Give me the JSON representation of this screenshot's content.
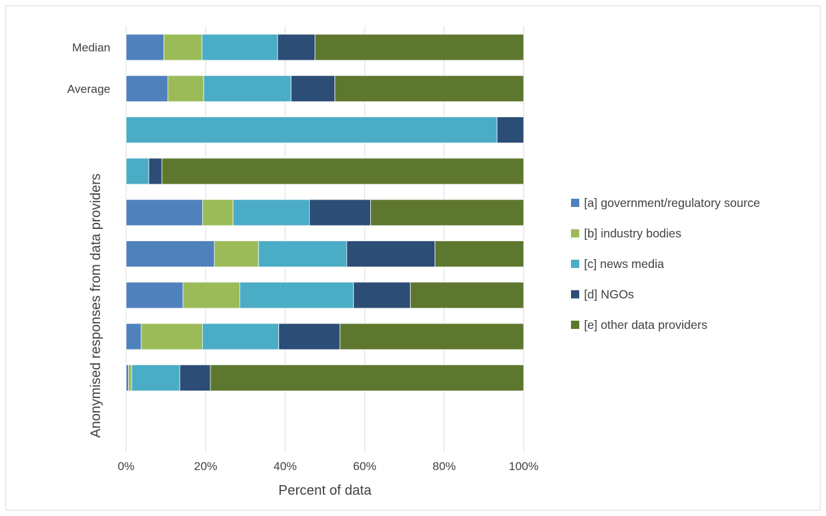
{
  "chart_data": {
    "type": "bar",
    "orientation": "horizontal",
    "stacked": true,
    "xlabel": "Percent of data",
    "ylabel": "Anonymised responses from data providers",
    "xlim": [
      0,
      100
    ],
    "x_ticks": [
      "0%",
      "20%",
      "40%",
      "60%",
      "80%",
      "100%"
    ],
    "grid": true,
    "legend_position": "right",
    "categories": [
      "Median",
      "Average",
      "",
      "",
      "",
      "",
      "",
      "",
      ""
    ],
    "series": [
      {
        "name": "[a] government/regulatory source",
        "color": "#4f81bd",
        "values": [
          9.5,
          10.5,
          0,
          0,
          19.2,
          22.2,
          14.3,
          3.8,
          0.6
        ]
      },
      {
        "name": "[b] industry bodies",
        "color": "#9bbb59",
        "values": [
          9.6,
          9.0,
          0,
          0,
          7.7,
          11.1,
          14.3,
          15.4,
          0.8
        ]
      },
      {
        "name": "[c] news media",
        "color": "#4bacc6",
        "values": [
          19.0,
          22.0,
          93.3,
          5.7,
          19.2,
          22.2,
          28.6,
          19.2,
          12.1
        ]
      },
      {
        "name": "[d] NGOs",
        "color": "#2c4d75",
        "values": [
          9.4,
          11.0,
          6.7,
          3.3,
          15.4,
          22.2,
          14.3,
          15.4,
          7.7
        ]
      },
      {
        "name": "[e] other data providers",
        "color": "#5e772e",
        "values": [
          52.5,
          47.5,
          0,
          91.0,
          38.5,
          22.3,
          28.5,
          46.2,
          78.8
        ]
      }
    ]
  }
}
